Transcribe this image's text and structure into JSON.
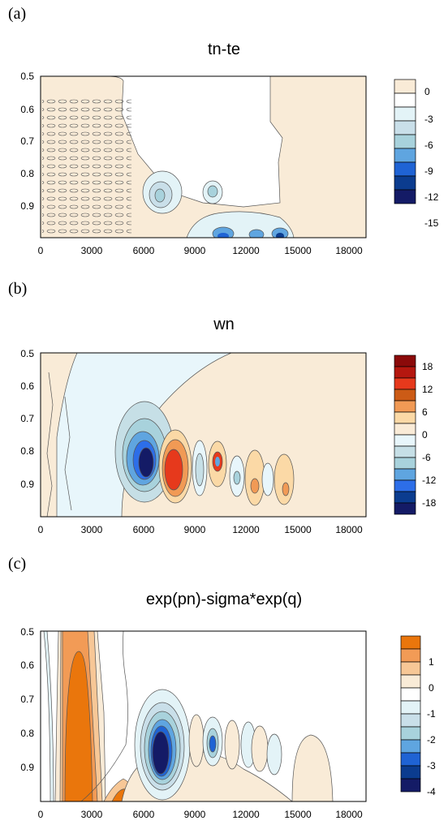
{
  "chart_data": [
    {
      "type": "contour",
      "panel_label": "(a)",
      "title": "tn-te",
      "x_ticks": [
        "0",
        "3000",
        "6000",
        "9000",
        "12000",
        "15000",
        "18000"
      ],
      "y_ticks": [
        "0.5",
        "0.6",
        "0.7",
        "0.8",
        "0.9"
      ],
      "xlim": [
        0,
        19000
      ],
      "ylim": [
        0.5,
        1.0
      ],
      "y_inverted": true,
      "colorbar": {
        "labels": [
          "0",
          "-3",
          "-6",
          "-9",
          "-12",
          "-15"
        ],
        "colors": [
          "#f9ebd7",
          "#ffffff",
          "#e3f3f7",
          "#c9dfe9",
          "#a8d2dc",
          "#5fa5e0",
          "#1f63d4",
          "#0b3c8f",
          "#141b66"
        ]
      },
      "features": [
        {
          "x": 7000,
          "y": 0.87,
          "min": -6
        },
        {
          "x": 10200,
          "y": 0.86,
          "min": -6
        },
        {
          "x": 10700,
          "y": 0.98,
          "min": -15
        },
        {
          "x": 12700,
          "y": 0.98,
          "min": -12
        },
        {
          "x": 14200,
          "y": 0.98,
          "min": -15
        }
      ]
    },
    {
      "type": "contour",
      "panel_label": "(b)",
      "title": "wn",
      "x_ticks": [
        "0",
        "3000",
        "6000",
        "9000",
        "12000",
        "15000",
        "18000"
      ],
      "y_ticks": [
        "0.5",
        "0.6",
        "0.7",
        "0.8",
        "0.9"
      ],
      "xlim": [
        0,
        19000
      ],
      "ylim": [
        0.5,
        1.0
      ],
      "y_inverted": true,
      "colorbar": {
        "labels": [
          "18",
          "12",
          "6",
          "0",
          "-6",
          "-12",
          "-18"
        ],
        "colors": [
          "#8b0a0a",
          "#b5170f",
          "#e6391c",
          "#cc5b16",
          "#f19a55",
          "#fbd9a6",
          "#f9ebd7",
          "#e8f6fb",
          "#c6dfe6",
          "#a8d2dc",
          "#5fa5e0",
          "#2d6ee8",
          "#0b3c8f",
          "#141b66"
        ]
      },
      "features": [
        {
          "x": 6200,
          "y": 0.87,
          "value": -20
        },
        {
          "x": 7800,
          "y": 0.88,
          "value": 20
        },
        {
          "x": 9500,
          "y": 0.87,
          "value": -6
        },
        {
          "x": 10400,
          "y": 0.86,
          "value": 14
        },
        {
          "x": 11100,
          "y": 0.93,
          "value": -6
        },
        {
          "x": 12600,
          "y": 0.93,
          "value": 6
        },
        {
          "x": 13800,
          "y": 0.93,
          "value": 4
        }
      ]
    },
    {
      "type": "contour",
      "panel_label": "(c)",
      "title": "exp(pn)-sigma*exp(q)",
      "x_ticks": [
        "0",
        "3000",
        "6000",
        "9000",
        "12000",
        "15000",
        "18000"
      ],
      "y_ticks": [
        "0.5",
        "0.6",
        "0.7",
        "0.8",
        "0.9"
      ],
      "xlim": [
        0,
        19000
      ],
      "ylim": [
        0.5,
        1.0
      ],
      "y_inverted": true,
      "colorbar": {
        "labels": [
          "1",
          "0",
          "-1",
          "-2",
          "-3",
          "-4"
        ],
        "colors": [
          "#ea760c",
          "#f29b56",
          "#f7c796",
          "#f9ebd7",
          "#ffffff",
          "#e3f3f7",
          "#c9dfe9",
          "#a8d2dc",
          "#5fa5e0",
          "#1f63d4",
          "#0b3c8f",
          "#141b66"
        ]
      },
      "features": [
        {
          "x": 1900,
          "y": 0.8,
          "value": 1.5
        },
        {
          "x": 5000,
          "y": 0.95,
          "value": 1.5
        },
        {
          "x": 7000,
          "y": 0.87,
          "value": -4.5
        },
        {
          "x": 10000,
          "y": 0.86,
          "value": -3
        },
        {
          "x": 13000,
          "y": 0.92,
          "value": -1
        },
        {
          "x": 16300,
          "y": 0.92,
          "value": 0.3
        }
      ]
    }
  ]
}
